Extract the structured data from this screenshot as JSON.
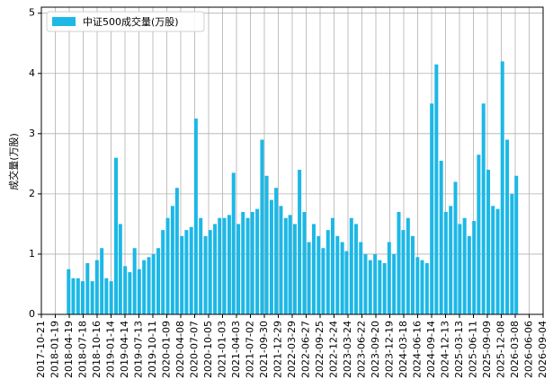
{
  "chart_data": {
    "type": "bar",
    "ylabel": "成交量(万股)",
    "legend": "upper left",
    "grid": true,
    "series": [
      {
        "name": "中证500成交量(万股)",
        "color": "#1cb8e6",
        "values": [
          0.75,
          0.6,
          0.6,
          0.55,
          0.85,
          0.55,
          0.9,
          1.1,
          0.6,
          0.55,
          2.6,
          1.5,
          0.8,
          0.7,
          1.1,
          0.75,
          0.9,
          0.95,
          1.0,
          1.1,
          1.4,
          1.6,
          1.8,
          2.1,
          1.3,
          1.4,
          1.45,
          3.25,
          1.6,
          1.3,
          1.4,
          1.5,
          1.6,
          1.6,
          1.65,
          2.35,
          1.5,
          1.7,
          1.6,
          1.7,
          1.75,
          2.9,
          2.3,
          1.9,
          2.1,
          1.8,
          1.6,
          1.65,
          1.5,
          2.4,
          1.7,
          1.2,
          1.5,
          1.3,
          1.1,
          1.4,
          1.6,
          1.3,
          1.2,
          1.05,
          1.6,
          1.5,
          1.2,
          1.0,
          0.9,
          1.0,
          0.9,
          0.85,
          1.2,
          1.0,
          1.7,
          1.4,
          1.6,
          1.3,
          0.95,
          0.9,
          0.85,
          3.5,
          4.15,
          2.55,
          1.7,
          1.8,
          2.2,
          1.5,
          1.6,
          1.3,
          1.55,
          2.65,
          3.5,
          2.4,
          1.8,
          1.75,
          4.2,
          2.9,
          2.0,
          2.3
        ]
      }
    ],
    "x": [
      "2018-04-15",
      "2018-05-15",
      "2018-06-15",
      "2018-07-15",
      "2018-08-15",
      "2018-09-15",
      "2018-10-15",
      "2018-11-15",
      "2018-12-15",
      "2019-01-15",
      "2019-02-15",
      "2019-03-15",
      "2019-04-15",
      "2019-05-15",
      "2019-06-15",
      "2019-07-15",
      "2019-08-15",
      "2019-09-15",
      "2019-10-15",
      "2019-11-15",
      "2019-12-15",
      "2020-01-15",
      "2020-02-15",
      "2020-03-15",
      "2020-04-15",
      "2020-05-15",
      "2020-06-15",
      "2020-07-15",
      "2020-08-15",
      "2020-09-15",
      "2020-10-15",
      "2020-11-15",
      "2020-12-15",
      "2021-01-15",
      "2021-02-15",
      "2021-03-15",
      "2021-04-15",
      "2021-05-15",
      "2021-06-15",
      "2021-07-15",
      "2021-08-15",
      "2021-09-15",
      "2021-10-15",
      "2021-11-15",
      "2021-12-15",
      "2022-01-15",
      "2022-02-15",
      "2022-03-15",
      "2022-04-15",
      "2022-05-15",
      "2022-06-15",
      "2022-07-15",
      "2022-08-15",
      "2022-09-15",
      "2022-10-15",
      "2022-11-15",
      "2022-12-15",
      "2023-01-15",
      "2023-02-15",
      "2023-03-15",
      "2023-04-15",
      "2023-05-15",
      "2023-06-15",
      "2023-07-15",
      "2023-08-15",
      "2023-09-15",
      "2023-10-15",
      "2023-11-15",
      "2023-12-15",
      "2024-01-15",
      "2024-02-15",
      "2024-03-15",
      "2024-04-15",
      "2024-05-15",
      "2024-06-15",
      "2024-07-15",
      "2024-08-15",
      "2024-09-15",
      "2024-10-15",
      "2024-11-15",
      "2024-12-15",
      "2025-01-15",
      "2025-02-15",
      "2025-03-15",
      "2025-04-15",
      "2025-05-15",
      "2025-06-15",
      "2025-07-15",
      "2025-08-15",
      "2025-09-15",
      "2025-10-15",
      "2025-11-15",
      "2025-12-15",
      "2026-01-15",
      "2026-02-15",
      "2026-03-15"
    ],
    "xlim": [
      "2017-10-21",
      "2026-09-04"
    ],
    "xticks": [
      "2017-10-21",
      "2018-01-19",
      "2018-04-19",
      "2018-07-18",
      "2018-10-16",
      "2019-01-14",
      "2019-04-14",
      "2019-07-13",
      "2019-10-11",
      "2020-01-09",
      "2020-04-08",
      "2020-07-07",
      "2020-10-05",
      "2021-01-03",
      "2021-04-03",
      "2021-07-02",
      "2021-09-30",
      "2021-12-29",
      "2022-03-29",
      "2022-06-27",
      "2022-09-25",
      "2022-12-24",
      "2023-03-24",
      "2023-06-22",
      "2023-09-20",
      "2023-12-19",
      "2024-03-18",
      "2024-06-16",
      "2024-09-14",
      "2024-12-13",
      "2025-03-13",
      "2025-06-11",
      "2025-09-09",
      "2025-12-08",
      "2026-03-08",
      "2026-06-06",
      "2026-09-04"
    ],
    "ylim": [
      0,
      5.1
    ],
    "yticks": [
      0,
      1,
      2,
      3,
      4,
      5
    ]
  }
}
